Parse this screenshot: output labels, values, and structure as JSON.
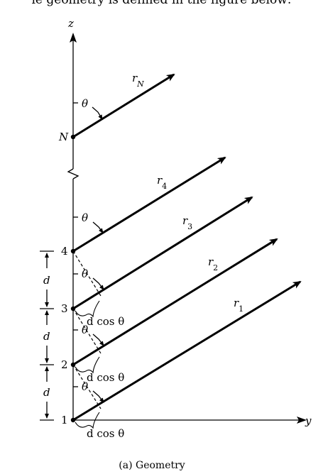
{
  "header_text": "ie geometry is defined in the figure below:",
  "axes": {
    "z_label": "z",
    "y_label": "y"
  },
  "element_labels": [
    "1",
    "2",
    "3",
    "4",
    "N"
  ],
  "rays": [
    "r",
    "r",
    "r",
    "r",
    "r"
  ],
  "ray_subscripts": [
    "1",
    "2",
    "3",
    "4",
    "N"
  ],
  "angle_symbol": "θ",
  "spacing_symbol": "d",
  "path_difference": "d cos θ",
  "caption": "(a) Geometry"
}
